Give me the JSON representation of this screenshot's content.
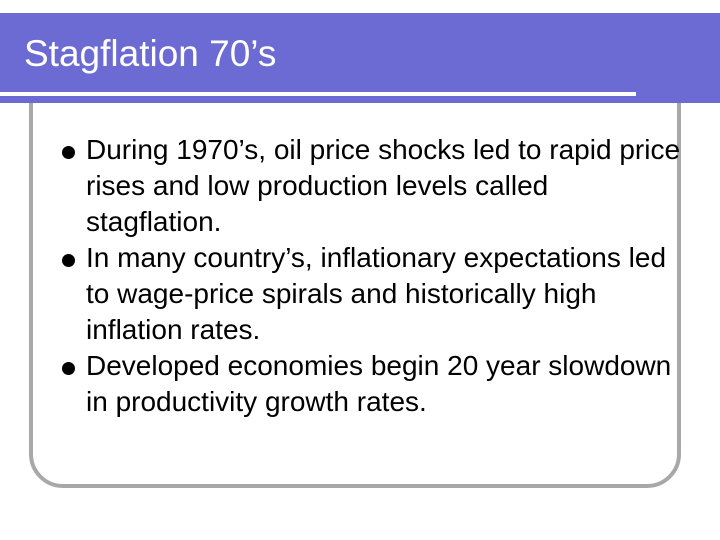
{
  "slide": {
    "title": "Stagflation 70’s",
    "bullets": [
      "During 1970’s, oil price shocks led to rapid price rises and low production levels called stagflation.",
      "In many country’s, inflationary expectations led to wage-price spirals and historically high inflation rates.",
      "Developed economies begin 20 year slowdown in productivity growth rates."
    ]
  },
  "colors": {
    "title_bar": "#6b6bd3",
    "frame": "#a8a8a8",
    "text": "#000000",
    "title_text": "#ffffff"
  }
}
